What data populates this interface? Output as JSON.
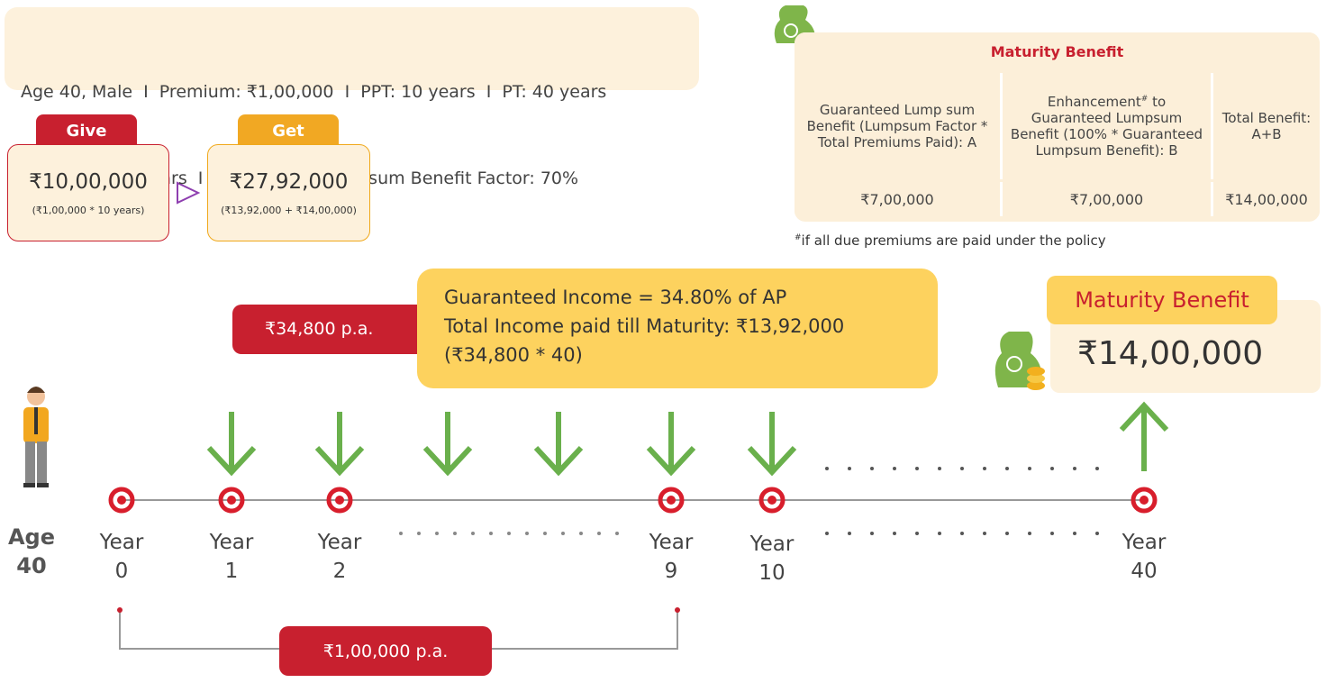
{
  "info": {
    "line1": "Age 40, Male  I  Premium: ₹1,00,000  I  PPT: 10 years  I  PT: 40 years",
    "line2": "Deferment: 0 years  I  Guaranteed Lumpsum Benefit Factor: 70%"
  },
  "give": {
    "tab": "Give",
    "amount": "₹10,00,000",
    "note": "(₹1,00,000 * 10 years)"
  },
  "get": {
    "tab": "Get",
    "amount": "₹27,92,000",
    "note": "(₹13,92,000 + ₹14,00,000)"
  },
  "table": {
    "title": "Maturity Benefit",
    "headers": [
      {
        "text": "Guaranteed Lump sum Benefit (Lumpsum Factor * Total Premiums Paid): A"
      },
      {
        "before": "Enhancement",
        "sup": "#",
        "text": " to Guaranteed Lumpsum Benefit (100% * Guaranteed Lumpsum Benefit): B"
      },
      {
        "text": "Total Benefit: A+B"
      }
    ],
    "row": [
      "₹7,00,000",
      "₹7,00,000",
      "₹14,00,000"
    ],
    "footnote": {
      "sup": "#",
      "text": "if all due premiums are paid under the policy"
    }
  },
  "income_badge": "₹34,800 p.a.",
  "income_box": [
    "Guaranteed Income = 34.80% of AP",
    "Total Income paid till Maturity: ₹13,92,000",
    "(₹34,800 * 40)"
  ],
  "maturity": {
    "tab": "Maturity Benefit",
    "amount": "₹14,00,000"
  },
  "age": {
    "label": "Age",
    "value": "40"
  },
  "years": [
    {
      "label": "Year",
      "number": "0"
    },
    {
      "label": "Year",
      "number": "1"
    },
    {
      "label": "Year",
      "number": "2"
    },
    {
      "label": "Year",
      "number": "9"
    },
    {
      "label": "Year",
      "number": "10"
    },
    {
      "label": "Year",
      "number": "40"
    }
  ],
  "premium_badge": "₹1,00,000 p.a."
}
